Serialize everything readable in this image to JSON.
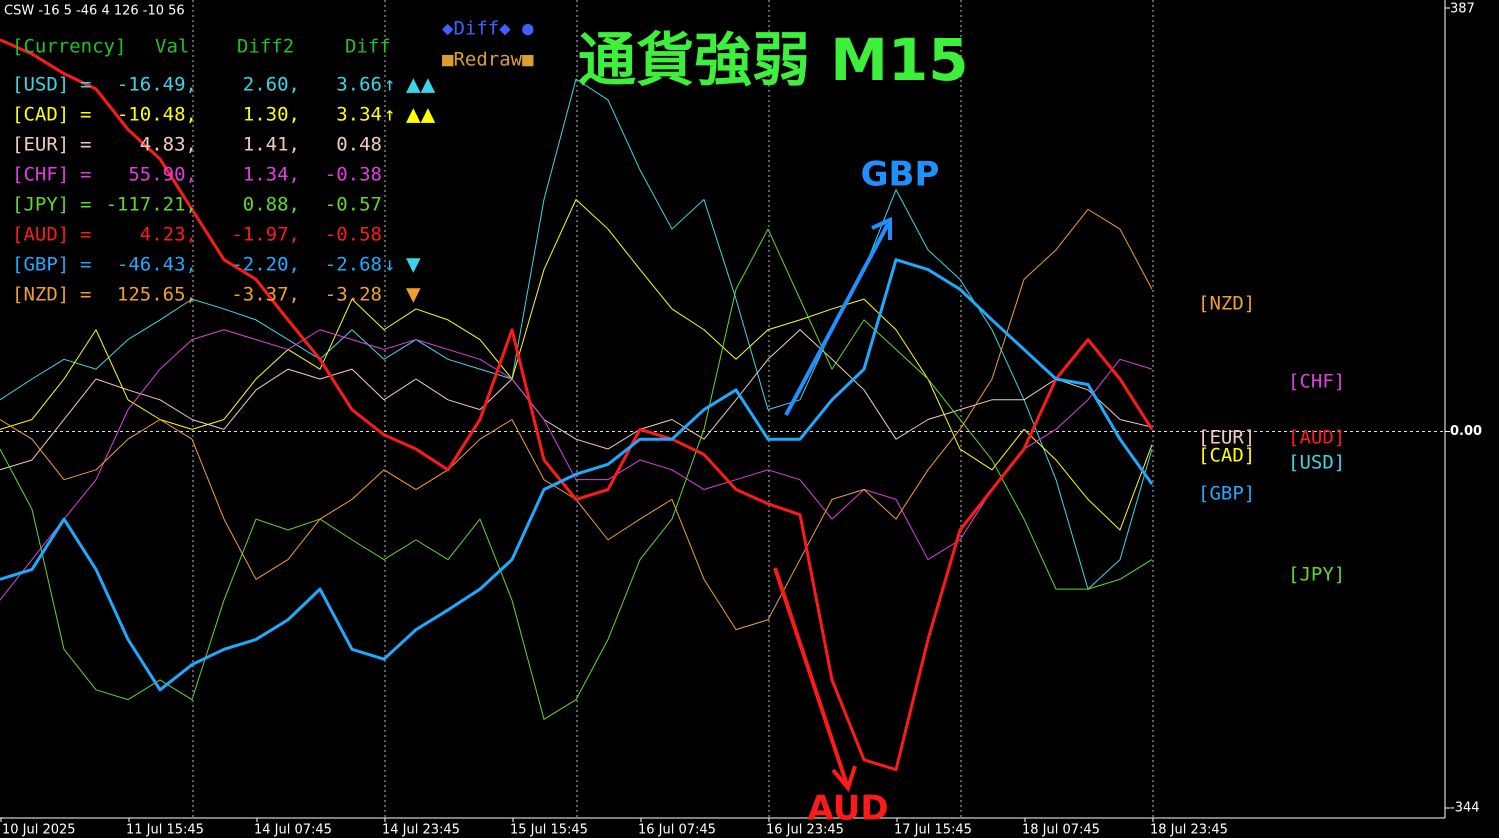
{
  "top_label": "CSW -16 5 -46 4 126 -10 56",
  "buttons": [
    "◆Diff◆ ●",
    "■Redraw■"
  ],
  "panel": {
    "header": [
      "[Currency]",
      "Val",
      "Diff2",
      "Diff"
    ],
    "sep": "=",
    "rows": [
      {
        "val": "-16.49,",
        "diff2": "2.60,",
        "diff": "3.66",
        "arrow": "↑",
        "marks": "▲▲"
      },
      {
        "val": "-10.48,",
        "diff2": "1.30,",
        "diff": "3.34",
        "arrow": "↑",
        "marks": "▲▲"
      },
      {
        "val": "4.83,",
        "diff2": "1.41,",
        "diff": "0.48"
      },
      {
        "val": "55.90,",
        "diff2": "1.34,",
        "diff": "-0.38"
      },
      {
        "val": "-117.21,",
        "diff2": "0.88,",
        "diff": "-0.57"
      },
      {
        "val": "4.23,",
        "diff2": "-1.97,",
        "diff": "-0.58"
      },
      {
        "val": "-46.43,",
        "diff2": "-2.20,",
        "diff": "-2.68",
        "arrow": "↓",
        "marks": "▼"
      },
      {
        "val": "125.65,",
        "diff2": "-3.37,",
        "diff": "-3.28",
        "marks": "▼"
      }
    ]
  },
  "chart_data": {
    "type": "line",
    "title": "通貨強弱  M15",
    "annotations": [
      "GBP",
      "AUD"
    ],
    "categories": [
      "10 Jul 2025",
      null,
      null,
      null,
      "11 Jul 15:45",
      null,
      null,
      null,
      "14 Jul 07:45",
      null,
      null,
      null,
      "14 Jul 23:45",
      null,
      null,
      null,
      "15 Jul 15:45",
      null,
      null,
      null,
      "16 Jul 07:45",
      null,
      null,
      null,
      "16 Jul 23:45",
      null,
      null,
      null,
      "17 Jul 15:45",
      null,
      null,
      null,
      "18 Jul 07:45",
      null,
      null,
      null,
      "18 Jul 23:45"
    ],
    "ylim": [
      -344,
      387
    ],
    "yticks": [
      -344,
      {
        "value": 0,
        "label": "0.00"
      },
      387
    ],
    "series": [
      {
        "name": "[USD]",
        "color": "#3ad6e8",
        "values": [
          29,
          48,
          66,
          57,
          84,
          102,
          121,
          112,
          102,
          84,
          66,
          93,
          66,
          84,
          66,
          57,
          48,
          212,
          322,
          303,
          239,
          185,
          212,
          121,
          20,
          29,
          93,
          148,
          221,
          166,
          139,
          93,
          29,
          -44,
          -144,
          -117,
          -16
        ]
      },
      {
        "name": "[CAD]",
        "color": "#ffff00",
        "values": [
          2,
          11,
          48,
          93,
          29,
          11,
          2,
          11,
          48,
          75,
          57,
          121,
          93,
          112,
          102,
          84,
          48,
          148,
          212,
          185,
          148,
          112,
          93,
          66,
          93,
          102,
          112,
          121,
          93,
          48,
          -16,
          -35,
          2,
          -26,
          -62,
          -90,
          -12
        ]
      },
      {
        "name": "[EUR]",
        "color": "#f3c9c0",
        "values": [
          -35,
          -26,
          11,
          48,
          38,
          29,
          11,
          2,
          38,
          57,
          48,
          57,
          29,
          48,
          29,
          20,
          48,
          11,
          -7,
          -16,
          2,
          11,
          -7,
          29,
          66,
          93,
          66,
          38,
          -7,
          11,
          20,
          29,
          29,
          48,
          38,
          11,
          4
        ]
      },
      {
        "name": "[CHF]",
        "color": "#e03ee0",
        "values": [
          -154,
          -117,
          -80,
          -44,
          20,
          57,
          84,
          93,
          84,
          75,
          93,
          84,
          75,
          84,
          75,
          66,
          48,
          11,
          -44,
          -44,
          -26,
          -35,
          -53,
          -44,
          -35,
          -44,
          -80,
          -53,
          -62,
          -117,
          -99,
          -53,
          -16,
          2,
          29,
          66,
          57
        ]
      },
      {
        "name": "[JPY]",
        "color": "#5fd82c",
        "values": [
          -16,
          -71,
          -199,
          -236,
          -245,
          -227,
          -245,
          -154,
          -80,
          -90,
          -80,
          -99,
          -117,
          -99,
          -117,
          -80,
          -154,
          -263,
          -245,
          -190,
          -117,
          -80,
          2,
          130,
          185,
          121,
          57,
          102,
          75,
          48,
          11,
          -26,
          -80,
          -144,
          -144,
          -135,
          -117
        ]
      },
      {
        "name": "[AUD]",
        "color": "#ff1a1a",
        "values": [
          358,
          345,
          327,
          313,
          276,
          249,
          203,
          157,
          139,
          102,
          66,
          20,
          -3,
          -16,
          -35,
          11,
          93,
          -26,
          -62,
          -53,
          2,
          -7,
          -21,
          -53,
          -66,
          -76,
          -227,
          -300,
          -309,
          -190,
          -90,
          -53,
          -16,
          48,
          84,
          48,
          2
        ]
      },
      {
        "name": "[GBP]",
        "color": "#1eaaff",
        "values": [
          -135,
          -126,
          -80,
          -126,
          -190,
          -236,
          -213,
          -199,
          -190,
          -172,
          -144,
          -199,
          -208,
          -181,
          -163,
          -144,
          -117,
          -53,
          -39,
          -30,
          -7,
          -7,
          20,
          38,
          -7,
          -7,
          29,
          57,
          157,
          148,
          130,
          102,
          75,
          48,
          43,
          -7,
          -48
        ]
      },
      {
        "name": "[NZD]",
        "color": "#f0a030",
        "values": [
          11,
          -7,
          -44,
          -35,
          -7,
          11,
          -7,
          -80,
          -135,
          -117,
          -80,
          -62,
          -35,
          -53,
          -35,
          -7,
          11,
          -44,
          -62,
          -99,
          -80,
          -62,
          -135,
          -181,
          -172,
          -117,
          -62,
          -53,
          -80,
          -35,
          2,
          48,
          139,
          166,
          203,
          185,
          130
        ]
      }
    ]
  }
}
